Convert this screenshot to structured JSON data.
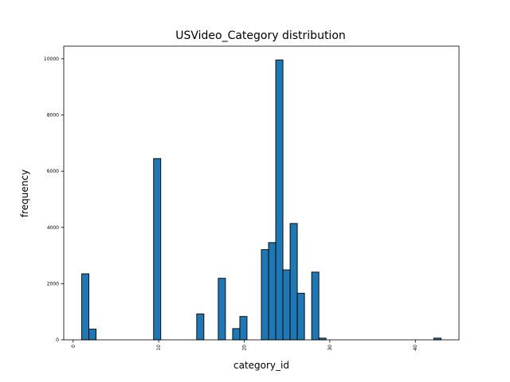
{
  "chart_data": {
    "type": "bar",
    "title": "USVideo_Category distribution",
    "xlabel": "category_id",
    "ylabel": "frequency",
    "xlim": [
      -1.1,
      45.1
    ],
    "ylim": [
      0,
      10450
    ],
    "bin_width": 0.84,
    "x_ticks": [
      0,
      10,
      20,
      30,
      40
    ],
    "y_ticks": [
      0,
      2000,
      4000,
      6000,
      8000,
      10000
    ],
    "bar_color": "#1f77b4",
    "edge_color": "#000000",
    "grid": false,
    "bins": [
      {
        "x_start": 1.0,
        "value": 2350
      },
      {
        "x_start": 1.84,
        "value": 380
      },
      {
        "x_start": 9.4,
        "value": 6450
      },
      {
        "x_start": 14.44,
        "value": 920
      },
      {
        "x_start": 16.96,
        "value": 2190
      },
      {
        "x_start": 18.64,
        "value": 400
      },
      {
        "x_start": 19.48,
        "value": 830
      },
      {
        "x_start": 22.0,
        "value": 3210
      },
      {
        "x_start": 22.84,
        "value": 3460
      },
      {
        "x_start": 23.68,
        "value": 9960
      },
      {
        "x_start": 24.52,
        "value": 2490
      },
      {
        "x_start": 25.36,
        "value": 4140
      },
      {
        "x_start": 26.2,
        "value": 1660
      },
      {
        "x_start": 27.88,
        "value": 2410
      },
      {
        "x_start": 28.72,
        "value": 60
      },
      {
        "x_start": 42.16,
        "value": 60
      }
    ]
  }
}
